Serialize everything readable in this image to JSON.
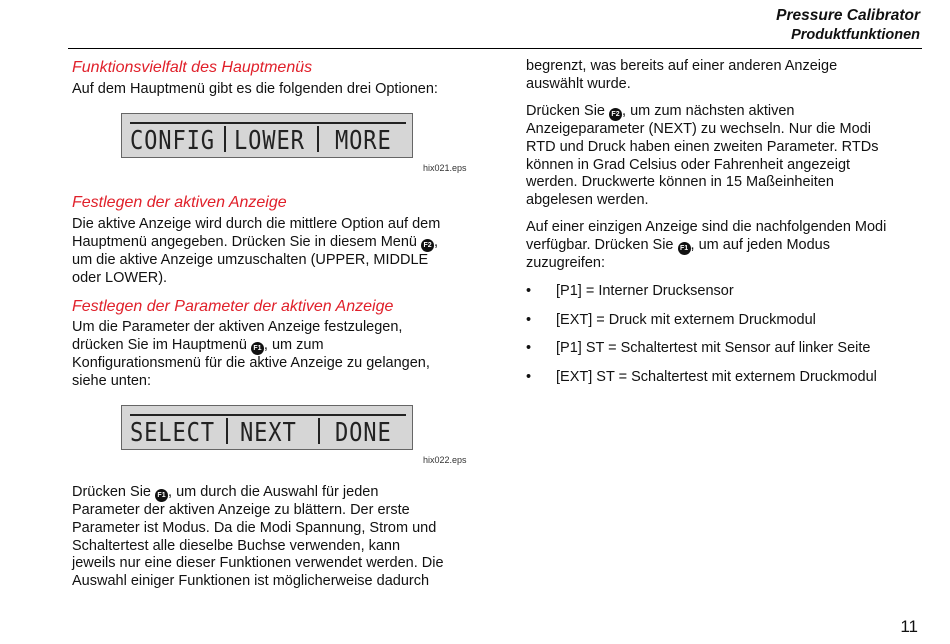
{
  "header": {
    "title": "Pressure Calibrator",
    "subtitle": "Produktfunktionen"
  },
  "left": {
    "h1": "Funktionsvielfalt des Hauptmenüs",
    "p1": "Auf dem Hauptmenü gibt es die folgenden drei Optionen:",
    "lcd1": [
      "CONFIG",
      "LOWER",
      "MORE"
    ],
    "cap1": "hix021.eps",
    "h2": "Festlegen der aktiven Anzeige",
    "p2": [
      "Die aktive Anzeige wird durch die mittlere Option auf dem",
      "Hauptmenü angegeben. Drücken Sie in diesem Menü ",
      ",",
      "um die aktive Anzeige umzuschalten (UPPER, MIDDLE",
      "oder LOWER)."
    ],
    "h3": "Festlegen der Parameter der aktiven Anzeige",
    "p3": [
      "Um die Parameter der aktiven Anzeige festzulegen,",
      "drücken Sie im Hauptmenü ",
      ", um zum",
      "Konfigurationsmenü für die aktive Anzeige zu gelangen,",
      "siehe unten:"
    ],
    "lcd2": [
      "SELECT",
      "NEXT",
      "DONE"
    ],
    "cap2": "hix022.eps",
    "p4": [
      "Drücken Sie ",
      ", um durch die Auswahl für jeden",
      "Parameter der aktiven Anzeige zu blättern. Der erste",
      "Parameter ist Modus. Da die Modi Spannung, Strom und",
      "Schaltertest alle dieselbe Buchse verwenden, kann",
      "jeweils nur eine dieser Funktionen verwendet werden. Die",
      "Auswahl einiger Funktionen ist möglicherweise dadurch"
    ]
  },
  "right": {
    "p1": [
      "begrenzt, was bereits auf einer anderen Anzeige",
      "auswählt wurde."
    ],
    "p2": [
      "Drücken Sie ",
      ", um zum nächsten aktiven",
      "Anzeigeparameter (NEXT) zu wechseln. Nur die Modi",
      "RTD und Druck haben einen zweiten Parameter. RTDs",
      "können in Grad Celsius oder Fahrenheit angezeigt",
      "werden. Druckwerte können in 15 Maßeinheiten",
      "abgelesen werden."
    ],
    "p3": [
      "Auf einer einzigen Anzeige sind die nachfolgenden Modi",
      "verfügbar. Drücken Sie ",
      ", um auf jeden Modus",
      "zuzugreifen:"
    ],
    "bullet": "•",
    "bullets": [
      "[P1] = Interner Drucksensor",
      "[EXT] = Druck mit externem Druckmodul",
      "[P1] ST = Schaltertest mit Sensor auf linker Seite",
      "[EXT] ST = Schaltertest mit externem Druckmodul"
    ]
  },
  "keys": {
    "f1": "F1",
    "f2": "F2"
  },
  "page_number": "11"
}
